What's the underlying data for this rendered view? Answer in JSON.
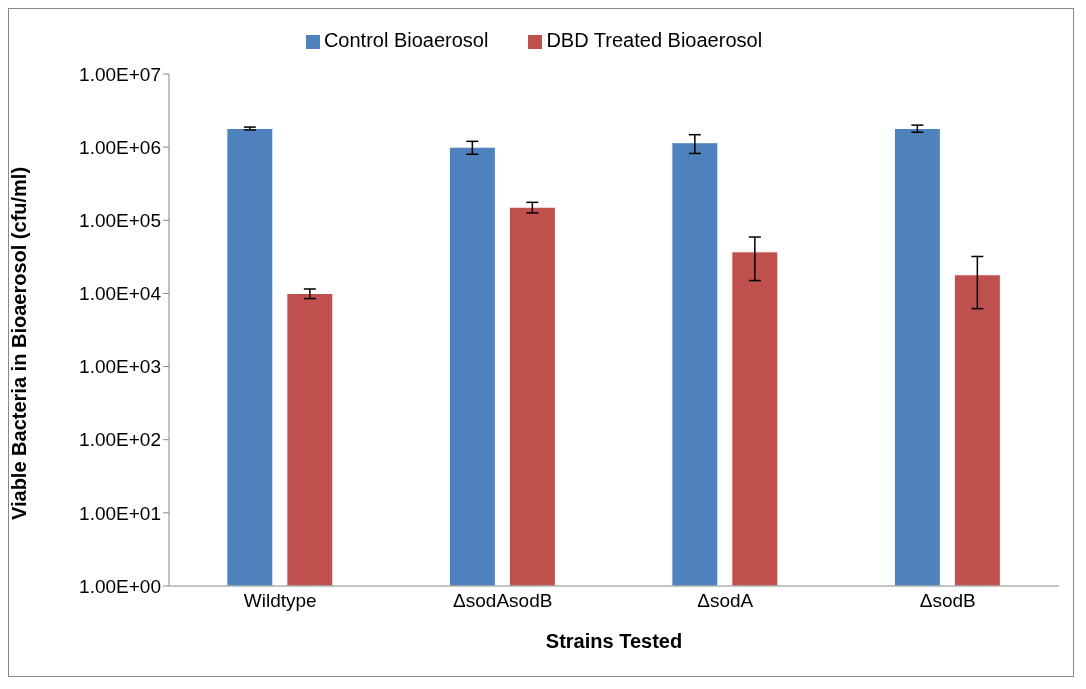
{
  "chart_data": {
    "type": "bar",
    "xlabel": "Strains Tested",
    "ylabel": "Viable Bacteria in Bioaerosol (cfu/ml)",
    "categories": [
      "Wildtype",
      "ΔsodAsodB",
      "ΔsodA",
      "ΔsodB"
    ],
    "series": [
      {
        "name": "Control Bioaerosol",
        "color": "#4f81bd",
        "values": [
          1800000,
          1000000,
          1150000,
          1800000
        ],
        "errors": [
          80000,
          200000,
          330000,
          200000
        ]
      },
      {
        "name": "DBD Treated Bioaerosol",
        "color": "#c0504d",
        "values": [
          10000,
          151000,
          37000,
          18000
        ],
        "errors": [
          1500,
          25000,
          22000,
          [
            6200,
            32000
          ]
        ]
      }
    ],
    "log": "y",
    "ylim": [
      1,
      10000000
    ],
    "yticks": [
      {
        "value": 1,
        "label": "1.00E+00"
      },
      {
        "value": 10,
        "label": "1.00E+01"
      },
      {
        "value": 100,
        "label": "1.00E+02"
      },
      {
        "value": 1000,
        "label": "1.00E+03"
      },
      {
        "value": 10000,
        "label": "1.00E+04"
      },
      {
        "value": 100000,
        "label": "1.00E+05"
      },
      {
        "value": 1000000,
        "label": "1.00E+06"
      },
      {
        "value": 10000000,
        "label": "1.00E+07"
      }
    ],
    "grid": false,
    "legend": "top"
  }
}
